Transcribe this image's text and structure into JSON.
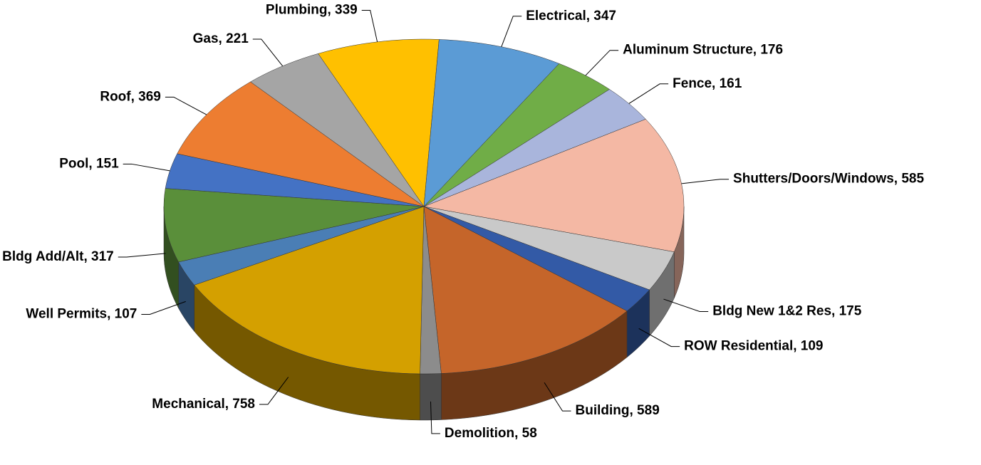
{
  "chart_data": {
    "type": "pie3d",
    "categories": [
      "Plumbing",
      "Electrical",
      "Aluminum Structure",
      "Fence",
      "Shutters/Doors/Windows",
      "Bldg New 1&2 Res",
      "ROW Residential",
      "Building",
      "Demolition",
      "Mechanical",
      "Well Permits",
      "Bldg Add/Alt",
      "Pool",
      "Roof",
      "Gas"
    ],
    "values": [
      339,
      347,
      176,
      161,
      585,
      175,
      109,
      589,
      58,
      758,
      107,
      317,
      151,
      369,
      221
    ],
    "value_labels": [
      "Plumbing, 339",
      "Electrical, 347",
      "Aluminum Structure, 176",
      "Fence, 161",
      "Shutters/Doors/Windows, 585",
      "Bldg New 1&2 Res, 175",
      "ROW Residential, 109",
      "Building, 589",
      "Demolition, 58",
      "Mechanical, 758",
      "Well Permits, 107",
      "Bldg Add/Alt, 317",
      "Pool, 151",
      "Roof, 369",
      "Gas, 221"
    ],
    "colors": [
      "#FFC000",
      "#5B9BD5",
      "#70AD47",
      "#A9B5DC",
      "#F4B8A4",
      "#C9C9C9",
      "#335AA6",
      "#C5652A",
      "#8C8C8C",
      "#D4A000",
      "#4A7EB5",
      "#5A8F3A",
      "#4472C4",
      "#ED7D31",
      "#A5A5A5"
    ]
  }
}
